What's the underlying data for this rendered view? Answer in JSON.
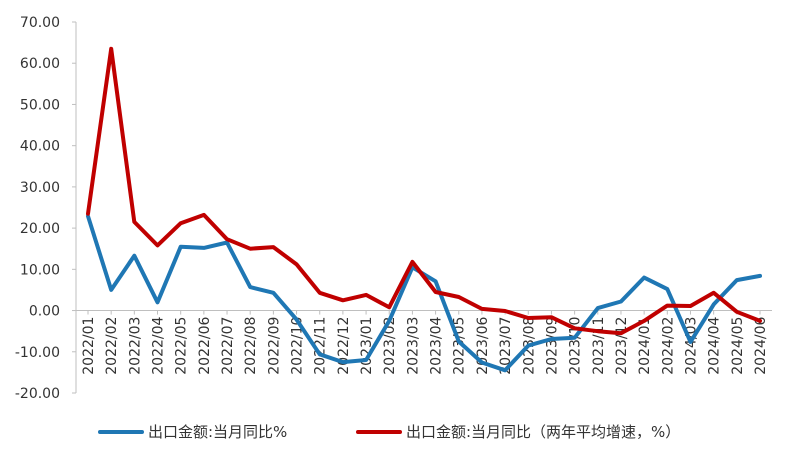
{
  "chart_data": {
    "type": "line",
    "title": "",
    "xlabel": "",
    "ylabel": "",
    "ylim": [
      -20,
      70
    ],
    "yticks": [
      "70.00",
      "60.00",
      "50.00",
      "40.00",
      "30.00",
      "20.00",
      "10.00",
      "0.00",
      "-10.00",
      "-20.00"
    ],
    "categories": [
      "2022/01",
      "2022/02",
      "2022/03",
      "2022/04",
      "2022/05",
      "2022/06",
      "2022/07",
      "2022/08",
      "2022/09",
      "2022/10",
      "2022/11",
      "2022/12",
      "2023/01",
      "2023/02",
      "2023/03",
      "2023/04",
      "2023/05",
      "2023/06",
      "2023/07",
      "2023/08",
      "2023/09",
      "2023/10",
      "2023/11",
      "2023/12",
      "2024/01",
      "2024/02",
      "2024/03",
      "2024/04",
      "2024/05",
      "2024/06"
    ],
    "series": [
      {
        "name": "出口金额:当月同比%",
        "color": "#1f77b4",
        "values": [
          22.9,
          5.0,
          13.3,
          2.0,
          15.5,
          15.2,
          16.5,
          5.7,
          4.3,
          -2.2,
          -10.6,
          -12.5,
          -12.0,
          -2.5,
          10.5,
          7.1,
          -7.5,
          -12.6,
          -14.5,
          -8.5,
          -6.9,
          -6.6,
          0.6,
          2.2,
          8.0,
          5.2,
          -7.6,
          1.5,
          7.4,
          8.4
        ]
      },
      {
        "name": "出口金额:当月同比（两年平均增速，%）",
        "color": "#c00000",
        "values": [
          23.5,
          63.5,
          21.5,
          15.8,
          21.2,
          23.2,
          17.3,
          15.0,
          15.4,
          11.2,
          4.3,
          2.5,
          3.8,
          0.8,
          11.8,
          4.5,
          3.3,
          0.4,
          -0.1,
          -1.8,
          -1.6,
          -4.3,
          -5.0,
          -5.5,
          -2.5,
          1.2,
          1.1,
          4.3,
          -0.3,
          -2.5
        ]
      }
    ],
    "grid": false,
    "legend_position": "bottom"
  }
}
